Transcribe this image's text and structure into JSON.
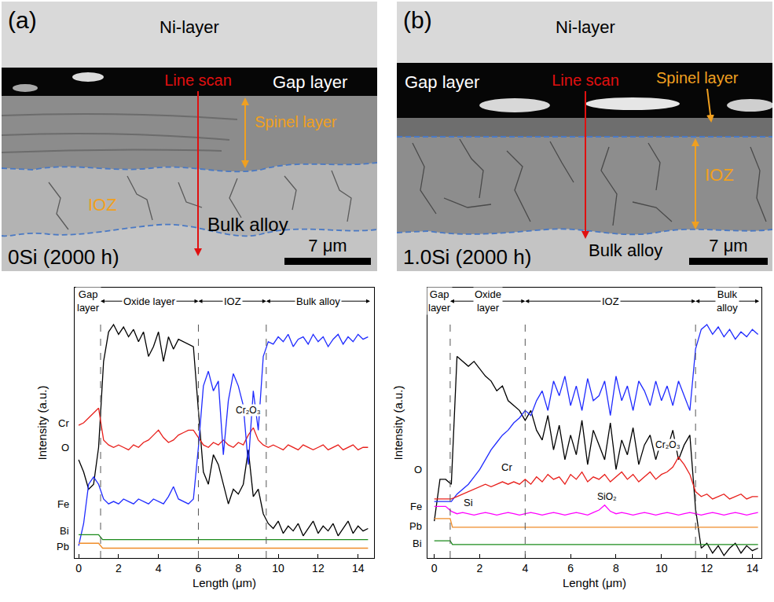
{
  "images": [
    {
      "letter": "(a)",
      "labels": {
        "top": "Ni-layer",
        "scan": "Line scan",
        "gap": "Gap layer",
        "spinel": "Spinel layer",
        "ioz": "IOZ",
        "bulk": "Bulk alloy",
        "scale_bar": "7 μm",
        "sample": "0Si (2000 h)"
      }
    },
    {
      "letter": "(b)",
      "labels": {
        "top": "Ni-layer",
        "scan": "Line scan",
        "gap": "Gap layer",
        "spinel": "Spinel layer",
        "ioz": "IOZ",
        "bulk": "Bulk alloy",
        "scale_bar": "7 μm",
        "sample": "1.0Si (2000 h)"
      }
    }
  ],
  "chart_data": [
    {
      "type": "line",
      "x_label": "Length (μm)",
      "y_label": "Intensity (a.u.)",
      "xlim": [
        -0.2,
        14.8
      ],
      "xticks": [
        0,
        2,
        4,
        6,
        8,
        10,
        12,
        14
      ],
      "ylim": [
        0,
        110
      ],
      "tick_labels": "x",
      "grid": false,
      "x": [
        0,
        0.25,
        0.5,
        0.75,
        1,
        1.25,
        1.5,
        1.75,
        2,
        2.25,
        2.5,
        2.75,
        3,
        3.25,
        3.5,
        3.75,
        4,
        4.25,
        4.5,
        4.75,
        5,
        5.25,
        5.5,
        5.75,
        6,
        6.25,
        6.5,
        6.75,
        7,
        7.25,
        7.5,
        7.75,
        8,
        8.25,
        8.5,
        8.75,
        9,
        9.25,
        9.5,
        9.75,
        10,
        10.25,
        10.5,
        10.75,
        11,
        11.25,
        11.5,
        11.75,
        12,
        12.25,
        12.5,
        12.75,
        13,
        13.25,
        13.5,
        13.75,
        14,
        14.25,
        14.5
      ],
      "series": [
        {
          "name": "O",
          "color": "#000000",
          "label_y": 45,
          "values": [
            40,
            35,
            28,
            30,
            45,
            80,
            92,
            95,
            91,
            94,
            90,
            93,
            88,
            92,
            82,
            86,
            92,
            80,
            90,
            85,
            89,
            88,
            87,
            86,
            60,
            35,
            30,
            42,
            38,
            30,
            22,
            28,
            26,
            30,
            44,
            25,
            28,
            18,
            14,
            12,
            15,
            10,
            13,
            11,
            14,
            9,
            12,
            15,
            10,
            13,
            11,
            14,
            9,
            12,
            15,
            10,
            13,
            11,
            12
          ]
        },
        {
          "name": "Cr",
          "color": "#e8201c",
          "label_y": 55,
          "values": [
            54,
            55,
            57,
            59,
            61,
            48,
            46,
            45,
            46,
            45,
            44,
            46,
            45,
            47,
            48,
            50,
            52,
            49,
            47,
            48,
            50,
            51,
            52,
            52,
            49,
            46,
            45,
            47,
            46,
            48,
            46,
            45,
            47,
            46,
            50,
            53,
            48,
            46,
            45,
            46,
            45,
            44,
            46,
            45,
            44,
            46,
            45,
            44,
            45,
            46,
            44,
            45,
            46,
            44,
            45,
            46,
            44,
            45,
            45
          ]
        },
        {
          "name": "Fe",
          "color": "#1f2bff",
          "label_y": 22,
          "values": [
            5,
            14,
            30,
            33,
            30,
            24,
            22,
            23,
            22,
            24,
            23,
            22,
            24,
            23,
            22,
            24,
            23,
            22,
            25,
            29,
            24,
            23,
            22,
            24,
            45,
            70,
            76,
            68,
            72,
            42,
            64,
            75,
            70,
            62,
            38,
            68,
            52,
            82,
            88,
            87,
            90,
            88,
            91,
            86,
            89,
            90,
            87,
            91,
            88,
            90,
            86,
            89,
            91,
            87,
            90,
            88,
            91,
            89,
            90
          ]
        },
        {
          "name": "Bi",
          "color": "#1b8a1b",
          "label_y": 11,
          "x": [
            0,
            1,
            1.2,
            14.5
          ],
          "values": [
            9.5,
            9.5,
            7.5,
            7.5
          ]
        },
        {
          "name": "Pb",
          "color": "#f08c28",
          "label_y": 4.5,
          "x": [
            0,
            1,
            1.2,
            14.5
          ],
          "values": [
            6,
            6,
            4,
            4
          ]
        }
      ],
      "regions": [
        {
          "label": "Gap layer",
          "from": -0.1,
          "to": 1.1
        },
        {
          "label": "Oxide layer",
          "from": 1.1,
          "to": 6.0
        },
        {
          "label": "IOZ",
          "from": 6.0,
          "to": 9.4
        },
        {
          "label": "Bulk alloy",
          "from": 9.4,
          "to": 14.6
        }
      ],
      "annotations": [
        {
          "text": "Cr₂O₃",
          "x": 8.5,
          "y": 60
        }
      ]
    },
    {
      "type": "line",
      "x_label": "Lenght (μm)",
      "y_label": "Intensity (a.u.)",
      "xlim": [
        -0.3,
        14.4
      ],
      "xticks": [
        0,
        2,
        4,
        6,
        8,
        10,
        12,
        14
      ],
      "ylim": [
        0,
        110
      ],
      "tick_labels": "x",
      "grid": false,
      "x": [
        0,
        0.25,
        0.5,
        0.75,
        1,
        1.25,
        1.5,
        1.75,
        2,
        2.25,
        2.5,
        2.75,
        3,
        3.25,
        3.5,
        3.75,
        4,
        4.25,
        4.5,
        4.75,
        5,
        5.25,
        5.5,
        5.75,
        6,
        6.25,
        6.5,
        6.75,
        7,
        7.25,
        7.5,
        7.75,
        8,
        8.25,
        8.5,
        8.75,
        9,
        9.25,
        9.5,
        9.75,
        10,
        10.25,
        10.5,
        10.75,
        11,
        11.25,
        11.5,
        11.75,
        12,
        12.25,
        12.5,
        12.75,
        13,
        13.25,
        13.5,
        13.75,
        14,
        14.25
      ],
      "series": [
        {
          "name": "O",
          "color": "#000000",
          "label_y": 36,
          "values": [
            15,
            32,
            32,
            30,
            82,
            80,
            78,
            80,
            77,
            74,
            72,
            68,
            70,
            64,
            62,
            60,
            56,
            60,
            52,
            48,
            58,
            44,
            54,
            40,
            50,
            42,
            56,
            38,
            52,
            46,
            40,
            55,
            36,
            48,
            42,
            53,
            38,
            46,
            50,
            40,
            48,
            44,
            52,
            40,
            46,
            50,
            20,
            4,
            6,
            2,
            5,
            1,
            4,
            6,
            2,
            5,
            3,
            4
          ]
        },
        {
          "name": "Fe",
          "color": "#1f2bff",
          "label_y": 21,
          "values": [
            23,
            23,
            23,
            23,
            26,
            28,
            30,
            33,
            36,
            40,
            44,
            47,
            50,
            52,
            55,
            57,
            60,
            58,
            64,
            68,
            60,
            72,
            66,
            74,
            62,
            70,
            60,
            73,
            64,
            66,
            72,
            58,
            74,
            64,
            70,
            60,
            72,
            68,
            62,
            72,
            64,
            70,
            62,
            72,
            66,
            60,
            85,
            93,
            95,
            91,
            94,
            90,
            93,
            89,
            92,
            90,
            93,
            91
          ]
        },
        {
          "name": "Cr",
          "color": "#e8201c",
          "label_x": 3.2,
          "label_y": 37,
          "values": [
            24,
            24,
            24,
            24,
            25,
            26,
            27,
            28,
            29,
            30,
            29,
            30,
            31,
            30,
            31,
            30,
            32,
            30,
            33,
            31,
            34,
            32,
            33,
            30,
            34,
            32,
            35,
            31,
            33,
            32,
            34,
            31,
            33,
            35,
            32,
            34,
            31,
            33,
            35,
            32,
            34,
            35,
            37,
            41,
            38,
            34,
            27,
            25,
            26,
            24,
            25,
            26,
            24,
            25,
            26,
            24,
            25,
            25
          ]
        },
        {
          "name": "Si",
          "color": "#ff00ff",
          "label_x": 1.5,
          "label_y": 22.5,
          "values": [
            21,
            21,
            21,
            19,
            18,
            18.5,
            18,
            17.5,
            18,
            18.5,
            18,
            17.5,
            18,
            18.5,
            18,
            17.5,
            18,
            18.5,
            18,
            17.5,
            18,
            18.5,
            18,
            17.5,
            18,
            18.5,
            18,
            17.5,
            18.5,
            19.5,
            21.5,
            19,
            18,
            18.5,
            18,
            17.5,
            18,
            18.5,
            18,
            17.5,
            18,
            18.5,
            18,
            17.5,
            18,
            18.5,
            18,
            17.5,
            18,
            18.5,
            18,
            17.5,
            18,
            18.5,
            18,
            17.5,
            18,
            18.5
          ]
        },
        {
          "name": "Pb",
          "color": "#f08c28",
          "label_y": 13,
          "x": [
            0,
            0.7,
            0.8,
            14.25
          ],
          "values": [
            16,
            16,
            12.5,
            12.5
          ]
        },
        {
          "name": "Bi",
          "color": "#1b8a1b",
          "label_y": 6,
          "x": [
            0,
            0.7,
            0.8,
            14.25
          ],
          "values": [
            7,
            7,
            5.5,
            5.5
          ]
        }
      ],
      "regions": [
        {
          "label": "Gap layer",
          "from": -0.2,
          "to": 0.7
        },
        {
          "label": "Oxide layer",
          "from": 0.7,
          "to": 4.0
        },
        {
          "label": "IOZ",
          "from": 4.0,
          "to": 11.5
        },
        {
          "label": "Bulk alloy",
          "from": 11.5,
          "to": 14.3
        }
      ],
      "annotations": [
        {
          "text": "Cr₂O₃",
          "x": 10.3,
          "y": 46
        },
        {
          "text": "SiO₂",
          "x": 7.6,
          "y": 25
        }
      ]
    }
  ]
}
